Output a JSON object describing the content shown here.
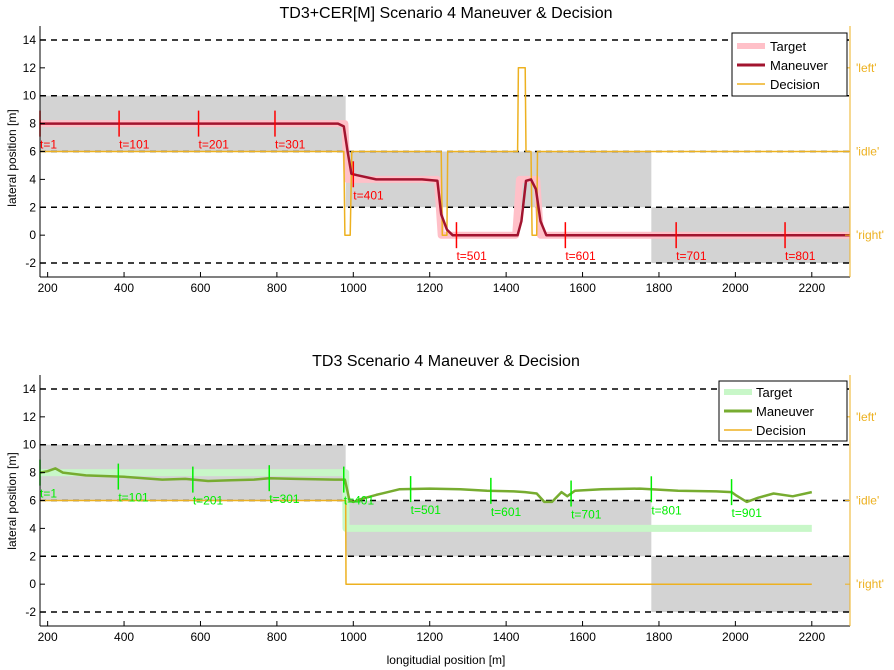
{
  "chart_data": [
    {
      "type": "line",
      "title": "TD3+CER[M] Scenario 4 Maneuver & Decision",
      "xlabel": "",
      "ylabel": "lateral position [m]",
      "xlim": [
        180,
        2300
      ],
      "ylim": [
        -3,
        15
      ],
      "xticks": [
        200,
        400,
        600,
        800,
        1000,
        1200,
        1400,
        1600,
        1800,
        2000,
        2200
      ],
      "yticks": [
        -2,
        0,
        2,
        4,
        6,
        8,
        10,
        12,
        14
      ],
      "right_axis_labels": [
        {
          "value": 12,
          "label": "'left'"
        },
        {
          "value": 6,
          "label": "'idle'"
        },
        {
          "value": 0,
          "label": "'right'"
        }
      ],
      "lane_lines": [
        -2,
        2,
        6,
        10,
        14
      ],
      "shaded_regions": [
        {
          "x": [
            180,
            980
          ],
          "y": [
            6,
            10
          ]
        },
        {
          "x": [
            980,
            1780
          ],
          "y": [
            2,
            6
          ]
        },
        {
          "x": [
            1780,
            2300
          ],
          "y": [
            -2,
            2
          ]
        }
      ],
      "legend": {
        "position": "top-right",
        "entries": [
          "Target",
          "Maneuver",
          "Decision"
        ]
      },
      "colors": {
        "target": "#ffc0c8",
        "maneuver": "#a2142f",
        "decision": "#edb120",
        "marker": "#ff0000",
        "shade": "#d3d3d3"
      },
      "series": [
        {
          "name": "Target",
          "x": [
            180,
            978,
            984,
            1220,
            1230,
            1425,
            1435,
            1480,
            1490,
            1780,
            2300
          ],
          "values": [
            8,
            8,
            4,
            4,
            0,
            0,
            4,
            4,
            0,
            0,
            0
          ]
        },
        {
          "name": "Maneuver",
          "x": [
            180,
            300,
            500,
            700,
            900,
            960,
            975,
            985,
            995,
            1010,
            1060,
            1120,
            1180,
            1220,
            1230,
            1245,
            1260,
            1300,
            1350,
            1400,
            1430,
            1440,
            1452,
            1465,
            1478,
            1490,
            1505,
            1560,
            1650,
            1750,
            1850,
            1950,
            2050,
            2150,
            2300
          ],
          "values": [
            8,
            8,
            8,
            8,
            8,
            8,
            7.8,
            6,
            4.4,
            4.3,
            4,
            4,
            4,
            3.9,
            1.5,
            0.4,
            0,
            0,
            0,
            0,
            0,
            1,
            3.9,
            4,
            3.3,
            1,
            0,
            0,
            0,
            0,
            0,
            0,
            0,
            0,
            0
          ]
        },
        {
          "name": "Decision",
          "x": [
            180,
            975,
            978,
            992,
            996,
            1230,
            1233,
            1245,
            1247,
            1430,
            1432,
            1450,
            1452,
            1465,
            1468,
            1480,
            1482,
            2300
          ],
          "values": [
            6,
            6,
            0,
            0,
            6,
            6,
            0,
            0,
            6,
            6,
            12,
            12,
            6,
            6,
            0,
            0,
            6,
            6
          ]
        }
      ],
      "time_markers": [
        {
          "x": 180,
          "label": "t=1"
        },
        {
          "x": 387,
          "label": "t=101"
        },
        {
          "x": 595,
          "label": "t=201"
        },
        {
          "x": 795,
          "label": "t=301"
        },
        {
          "x": 1000,
          "label": "t=401"
        },
        {
          "x": 1270,
          "label": "t=501"
        },
        {
          "x": 1555,
          "label": "t=601"
        },
        {
          "x": 1845,
          "label": "t=701"
        },
        {
          "x": 2130,
          "label": "t=801"
        }
      ]
    },
    {
      "type": "line",
      "title": "TD3 Scenario 4 Maneuver & Decision",
      "xlabel": "longitudial position [m]",
      "ylabel": "lateral position [m]",
      "xlim": [
        180,
        2300
      ],
      "ylim": [
        -3,
        15
      ],
      "xticks": [
        200,
        400,
        600,
        800,
        1000,
        1200,
        1400,
        1600,
        1800,
        2000,
        2200
      ],
      "yticks": [
        -2,
        0,
        2,
        4,
        6,
        8,
        10,
        12,
        14
      ],
      "right_axis_labels": [
        {
          "value": 12,
          "label": "'left'"
        },
        {
          "value": 6,
          "label": "'idle'"
        },
        {
          "value": 0,
          "label": "'right'"
        }
      ],
      "lane_lines": [
        -2,
        2,
        6,
        10,
        14
      ],
      "shaded_regions": [
        {
          "x": [
            180,
            980
          ],
          "y": [
            6,
            10
          ]
        },
        {
          "x": [
            980,
            1780
          ],
          "y": [
            2,
            6
          ]
        },
        {
          "x": [
            1780,
            2300
          ],
          "y": [
            -2,
            2
          ]
        }
      ],
      "legend": {
        "position": "top-right",
        "entries": [
          "Target",
          "Maneuver",
          "Decision"
        ]
      },
      "colors": {
        "target": "#c8f7c8",
        "maneuver": "#77ac30",
        "decision": "#edb120",
        "marker": "#00ee00",
        "shade": "#d3d3d3"
      },
      "series": [
        {
          "name": "Target",
          "x": [
            180,
            980,
            981,
            2200
          ],
          "values": [
            8,
            8,
            4,
            4
          ]
        },
        {
          "name": "Maneuver",
          "x": [
            180,
            200,
            220,
            240,
            300,
            400,
            500,
            560,
            620,
            680,
            740,
            780,
            850,
            950,
            978,
            990,
            1000,
            1020,
            1060,
            1120,
            1200,
            1280,
            1350,
            1420,
            1450,
            1480,
            1500,
            1520,
            1545,
            1560,
            1580,
            1650,
            1750,
            1850,
            1950,
            1990,
            2000,
            2030,
            2060,
            2100,
            2150,
            2200
          ],
          "values": [
            8,
            8.1,
            8.3,
            8.0,
            7.8,
            7.7,
            7.5,
            7.55,
            7.4,
            7.45,
            7.5,
            7.6,
            7.55,
            7.5,
            7.5,
            6.0,
            5.9,
            6.1,
            6.4,
            6.8,
            6.85,
            6.8,
            6.7,
            6.65,
            6.6,
            6.5,
            5.9,
            5.9,
            6.6,
            6.3,
            6.7,
            6.8,
            6.85,
            6.7,
            6.65,
            6.6,
            6.4,
            5.9,
            6.2,
            6.5,
            6.3,
            6.6
          ]
        },
        {
          "name": "Decision",
          "x": [
            180,
            980,
            981,
            2200
          ],
          "values": [
            6,
            6,
            0,
            0
          ]
        }
      ],
      "time_markers": [
        {
          "x": 180,
          "label": "t=1"
        },
        {
          "x": 385,
          "label": "t=101"
        },
        {
          "x": 580,
          "label": "t=201"
        },
        {
          "x": 780,
          "label": "t=301"
        },
        {
          "x": 975,
          "label": "t=401"
        },
        {
          "x": 1150,
          "label": "t=501"
        },
        {
          "x": 1360,
          "label": "t=601"
        },
        {
          "x": 1570,
          "label": "t=701"
        },
        {
          "x": 1780,
          "label": "t=801"
        },
        {
          "x": 1990,
          "label": "t=901"
        }
      ]
    }
  ]
}
